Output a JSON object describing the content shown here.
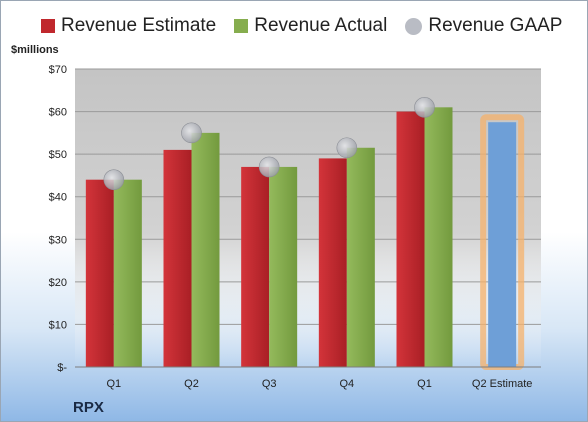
{
  "chart_data": {
    "type": "bar",
    "ylabel": "$millions",
    "ylim": [
      0,
      70
    ],
    "yticks": [
      {
        "value": 0,
        "label": "$-"
      },
      {
        "value": 10,
        "label": "$10"
      },
      {
        "value": 20,
        "label": "$20"
      },
      {
        "value": 30,
        "label": "$30"
      },
      {
        "value": 40,
        "label": "$40"
      },
      {
        "value": 50,
        "label": "$50"
      },
      {
        "value": 60,
        "label": "$60"
      },
      {
        "value": 70,
        "label": "$70"
      }
    ],
    "categories": [
      "Q1",
      "Q2",
      "Q3",
      "Q4",
      "Q1",
      "Q2 Estimate"
    ],
    "series": [
      {
        "name": "Revenue Estimate",
        "color": "#c0282d",
        "values": [
          44,
          51,
          47,
          49,
          60,
          null
        ]
      },
      {
        "name": "Revenue Actual",
        "color": "#86ad4e",
        "values": [
          44,
          55,
          47,
          51.5,
          61,
          null
        ]
      },
      {
        "name": "Revenue GAAP",
        "color": "#b9bcc4",
        "type": "scatter",
        "values": [
          44,
          55,
          47,
          51.5,
          61,
          null
        ]
      }
    ],
    "forecast": {
      "category": "Q2 Estimate",
      "value": 57.5,
      "color": "#6e9fd7",
      "glow": "#f5b26b"
    },
    "grid": true,
    "legend": "top",
    "company": "RPX"
  }
}
